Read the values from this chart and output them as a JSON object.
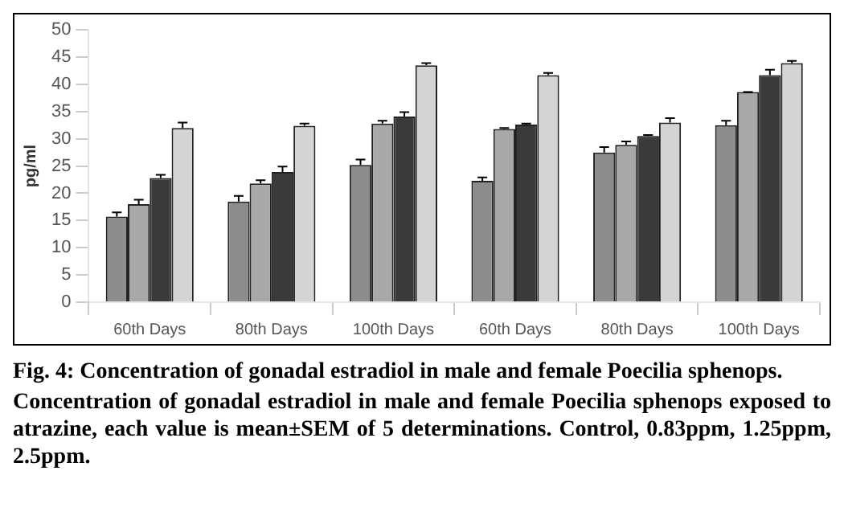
{
  "chart_data": {
    "type": "bar",
    "ylabel": "pg/ml",
    "categories": [
      "60th Days",
      "80th Days",
      "100th Days",
      "60th Days",
      "80th Days",
      "100th Days"
    ],
    "series": [
      {
        "color": "#8c8c8c",
        "values": [
          15.7,
          18.5,
          25.2,
          22.3,
          27.5,
          32.5
        ],
        "errors": [
          [
            15.7,
            16.5
          ],
          [
            18.5,
            19.5
          ],
          [
            25.2,
            26.2
          ],
          [
            22.3,
            22.9
          ],
          [
            27.5,
            28.5
          ],
          [
            32.5,
            33.3
          ]
        ]
      },
      {
        "color": "#a8a8a8",
        "values": [
          18,
          21.8,
          32.8,
          31.8,
          28.9,
          38.6
        ],
        "errors": [
          [
            18,
            18.8
          ],
          [
            21.8,
            22.4
          ],
          [
            32.8,
            33.3
          ],
          [
            31.8,
            32
          ],
          [
            28.9,
            29.5
          ],
          [
            38.6,
            38.6
          ]
        ]
      },
      {
        "color": "#3a3a3a",
        "values": [
          22.8,
          23.9,
          34.1,
          32.6,
          30.5,
          41.7
        ],
        "errors": [
          [
            22.8,
            23.4
          ],
          [
            23.9,
            24.9
          ],
          [
            34.1,
            34.9
          ],
          [
            32.6,
            32.8
          ],
          [
            30.5,
            30.7
          ],
          [
            41.7,
            42.7
          ]
        ]
      },
      {
        "color": "#d4d4d4",
        "values": [
          32,
          32.4,
          43.5,
          41.7,
          33,
          43.9
        ],
        "errors": [
          [
            32,
            33
          ],
          [
            32.4,
            32.8
          ],
          [
            43.5,
            43.9
          ],
          [
            41.7,
            42.1
          ],
          [
            33,
            33.8
          ],
          [
            43.9,
            44.3
          ]
        ]
      }
    ],
    "ylim": [
      0,
      50
    ],
    "yticks": [
      0,
      5,
      10,
      15,
      20,
      25,
      30,
      35,
      40,
      45,
      50
    ],
    "grid": false,
    "legend": false,
    "annotations": [
      "Fig. 4: Concentration of gonadal estradiol in male and female Poecilia sphenops.",
      "Concentration of gonadal estradiol in male and female Poecilia sphenops exposed to atrazine, each value is mean±SEM of 5 determinations. Control, 0.83ppm, 1.25ppm, 2.5ppm."
    ]
  }
}
